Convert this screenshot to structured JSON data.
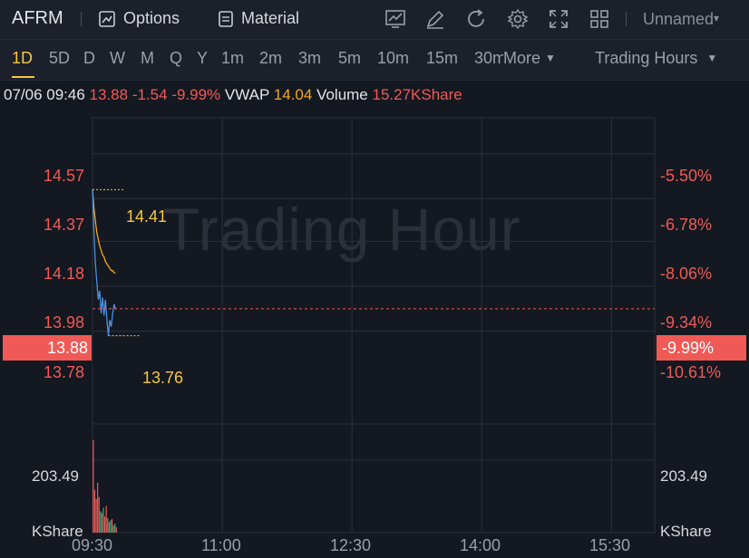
{
  "toolbar": {
    "ticker": "AFRM",
    "options_label": "Options",
    "material_label": "Material",
    "layout_name": "Unnamed",
    "icons": [
      "options-icon",
      "material-icon",
      "chart-icon",
      "draw-icon",
      "refresh-icon",
      "settings-icon",
      "fullscreen-icon",
      "layout-grid-icon",
      "dropdown-icon"
    ]
  },
  "timeframes": {
    "items": [
      "1D",
      "5D",
      "D",
      "W",
      "M",
      "Q",
      "Y",
      "1m",
      "2m",
      "3m",
      "5m",
      "10m",
      "15m",
      "30m"
    ],
    "active": "1D",
    "more_label": "More",
    "session_label": "Trading Hours"
  },
  "info": {
    "datetime": "07/06 09:46",
    "price": "13.88",
    "change": "-1.54",
    "change_pct": "-9.99%",
    "vwap_label": "VWAP",
    "vwap_value": "14.04",
    "volume_label": "Volume",
    "volume_value": "15.27KShare"
  },
  "chart": {
    "watermark": "Trading Hour",
    "current_price": "13.88",
    "current_pct": "-9.99%",
    "high_label": "14.41",
    "low_label": "13.76",
    "volume_max_label": "203.49",
    "volume_unit": "KShare",
    "colors": {
      "up": "#f05a56",
      "price_line": "#4a90e2",
      "vwap_line": "#f5a623",
      "highlight": "#f5c842",
      "volume_up": "#f05a56",
      "volume_down": "#3fb27f"
    }
  },
  "chart_data": {
    "type": "line",
    "title": "",
    "xlabel": "",
    "ylabel": "",
    "x_ticks": [
      "09:30",
      "11:00",
      "12:30",
      "14:00",
      "15:30"
    ],
    "price_ticks": [
      "14.57",
      "14.37",
      "14.18",
      "13.98",
      "13.78"
    ],
    "pct_ticks": [
      "-5.50%",
      "-6.78%",
      "-8.06%",
      "-9.34%",
      "-10.61%"
    ],
    "ylim": [
      13.44,
      14.73
    ],
    "xlim_minutes": [
      0,
      390
    ],
    "grid": true,
    "series": [
      {
        "x": [
          0,
          1,
          2,
          3,
          4,
          5,
          6,
          7,
          8,
          9,
          10,
          11,
          12,
          13,
          14,
          15,
          16
        ],
        "values": [
          14.41,
          14.22,
          14.08,
          14.0,
          13.92,
          13.96,
          13.86,
          13.93,
          13.85,
          13.92,
          13.83,
          13.76,
          13.83,
          13.8,
          13.86,
          13.9,
          13.88
        ]
      },
      {
        "x": [
          0,
          1,
          2,
          3,
          4,
          5,
          6,
          7,
          8,
          9,
          10,
          11,
          12,
          13,
          14,
          15,
          16
        ],
        "values": [
          14.41,
          14.33,
          14.27,
          14.22,
          14.19,
          14.16,
          14.14,
          14.12,
          14.11,
          14.09,
          14.08,
          14.07,
          14.06,
          14.05,
          14.05,
          14.04,
          14.04
        ]
      }
    ],
    "volume": {
      "ylim": [
        0,
        300
      ],
      "values": [
        260,
        120,
        95,
        140,
        100,
        60,
        55,
        70,
        45,
        75,
        40,
        30,
        35,
        38,
        20,
        25,
        15
      ],
      "up": [
        true,
        true,
        true,
        true,
        true,
        false,
        true,
        false,
        true,
        true,
        false,
        true,
        false,
        true,
        false,
        false,
        true
      ]
    }
  }
}
